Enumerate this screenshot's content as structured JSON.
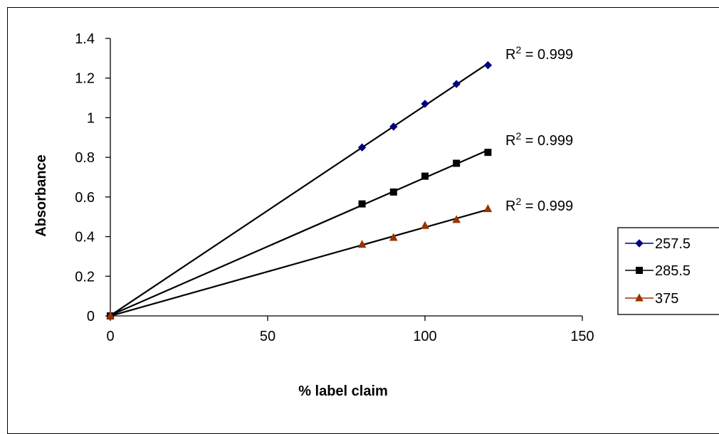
{
  "chart_data": {
    "type": "scatter",
    "title": "",
    "xlabel": "% label claim",
    "ylabel": "Absorbance",
    "xlim": [
      0,
      150
    ],
    "ylim": [
      0,
      1.4
    ],
    "xticks": [
      0,
      50,
      100,
      150
    ],
    "yticks": [
      0,
      0.2,
      0.4,
      0.6,
      0.8,
      1,
      1.2,
      1.4
    ],
    "xtick_labels": [
      "0",
      "50",
      "100",
      "150"
    ],
    "ytick_labels": [
      "0",
      "0.2",
      "0.4",
      "0.6",
      "0.8",
      "1",
      "1.2",
      "1.4"
    ],
    "grid": false,
    "legend_position": "right",
    "trendline": "linear",
    "series": [
      {
        "name": "257.5",
        "color": "#000080",
        "marker": "diamond",
        "points": [
          [
            0,
            0
          ],
          [
            80,
            0.85
          ],
          [
            90,
            0.955
          ],
          [
            100,
            1.07
          ],
          [
            110,
            1.17
          ],
          [
            120,
            1.265
          ]
        ],
        "r2_label": "R",
        "r2_sup": "2",
        "r2_value": " = 0.999"
      },
      {
        "name": "285.5",
        "color": "#000000",
        "marker": "square",
        "points": [
          [
            0,
            0
          ],
          [
            80,
            0.565
          ],
          [
            90,
            0.625
          ],
          [
            100,
            0.705
          ],
          [
            110,
            0.77
          ],
          [
            120,
            0.825
          ]
        ],
        "r2_label": "R",
        "r2_sup": "2",
        "r2_value": " = 0.999"
      },
      {
        "name": "375",
        "color": "#993300",
        "marker": "triangle",
        "points": [
          [
            0,
            0
          ],
          [
            80,
            0.36
          ],
          [
            90,
            0.395
          ],
          [
            100,
            0.455
          ],
          [
            110,
            0.485
          ],
          [
            120,
            0.54
          ]
        ],
        "r2_label": "R",
        "r2_sup": "2",
        "r2_value": " = 0.999"
      }
    ]
  }
}
